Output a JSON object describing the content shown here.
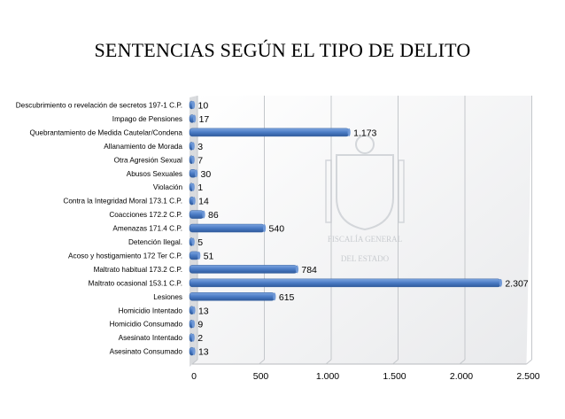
{
  "chart_data": {
    "type": "bar",
    "orientation": "horizontal",
    "title": "SENTENCIAS SEGÚN EL TIPO DE DELITO",
    "categories": [
      "Descubrimiento o revelación de secretos 197-1 C.P.",
      "Impago de Pensiones",
      "Quebrantamiento de Medida Cautelar/Condena",
      "Allanamiento de Morada",
      "Otra Agresión Sexual",
      "Abusos Sexuales",
      "Violación",
      "Contra la Integridad Moral 173.1 C.P.",
      "Coacciones 172.2 C.P.",
      "Amenazas 171.4 C.P.",
      "Detención Ilegal.",
      "Acoso y hostigamiento 172 Ter C.P.",
      "Maltrato habitual 173.2 C.P.",
      "Maltrato ocasional 153.1 C.P.",
      "Lesiones",
      "Homicidio Intentado",
      "Homicidio Consumado",
      "Asesinato Intentado",
      "Asesinato Consumado"
    ],
    "values": [
      10,
      17,
      1173,
      3,
      7,
      30,
      1,
      14,
      86,
      540,
      5,
      51,
      784,
      2307,
      615,
      13,
      9,
      2,
      13
    ],
    "value_labels": [
      "10",
      "17",
      "1.173",
      "3",
      "7",
      "30",
      "1",
      "14",
      "86",
      "540",
      "5",
      "51",
      "784",
      "2.307",
      "615",
      "13",
      "9",
      "2",
      "13"
    ],
    "x_ticks": [
      0,
      500,
      1000,
      1500,
      2000,
      2500
    ],
    "x_tick_labels": [
      "0",
      "500",
      "1.000",
      "1.500",
      "2.000",
      "2.500"
    ],
    "xlim": [
      0,
      2500
    ],
    "grid": true,
    "bar_color": "#4a7bc4",
    "watermark": [
      "FISCALÍA GENERAL",
      "DEL ESTADO"
    ]
  }
}
